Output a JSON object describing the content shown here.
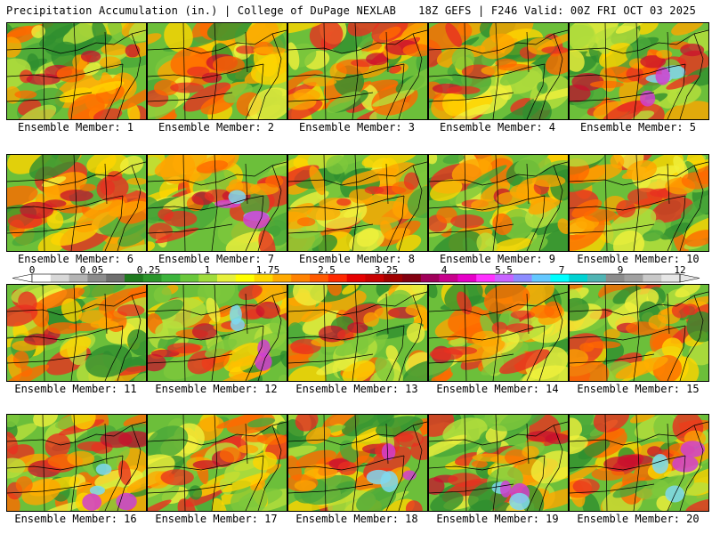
{
  "header": {
    "title": "Precipitation Accumulation (in.) | College of DuPage NEXLAB",
    "run_info": "18Z GEFS | F246 Valid: 00Z FRI OCT 03 2025"
  },
  "colorbar": {
    "labels": [
      "0",
      "0.05",
      "0.25",
      "1",
      "1.75",
      "2.5",
      "3.25",
      "4",
      "5.5",
      "7",
      "9",
      "12"
    ],
    "colors": [
      "#ffffff",
      "#d8d8d8",
      "#b4b4b4",
      "#8c8c8c",
      "#6e6e6e",
      "#1e7a1e",
      "#2b962b",
      "#3cb43c",
      "#6ac83c",
      "#a0dc3c",
      "#e6f03c",
      "#ffff00",
      "#ffd700",
      "#ffaa00",
      "#ff8200",
      "#ff5a00",
      "#ff2800",
      "#e60000",
      "#c80000",
      "#a00000",
      "#820010",
      "#a0005a",
      "#c8008c",
      "#e600c8",
      "#ff32ff",
      "#c864ff",
      "#8c8cff",
      "#64c8ff",
      "#00ffff",
      "#00d2d2",
      "#50b4b4",
      "#8c8c8c",
      "#a0a0a0",
      "#c8c8c8",
      "#e6e6e6"
    ]
  },
  "members": [
    {
      "label": "Ensemble Member: 1"
    },
    {
      "label": "Ensemble Member: 2"
    },
    {
      "label": "Ensemble Member: 3"
    },
    {
      "label": "Ensemble Member: 4"
    },
    {
      "label": "Ensemble Member: 5"
    },
    {
      "label": "Ensemble Member: 6"
    },
    {
      "label": "Ensemble Member: 7"
    },
    {
      "label": "Ensemble Member: 8"
    },
    {
      "label": "Ensemble Member: 9"
    },
    {
      "label": "Ensemble Member: 10"
    },
    {
      "label": "Ensemble Member: 11"
    },
    {
      "label": "Ensemble Member: 12"
    },
    {
      "label": "Ensemble Member: 13"
    },
    {
      "label": "Ensemble Member: 14"
    },
    {
      "label": "Ensemble Member: 15"
    },
    {
      "label": "Ensemble Member: 16"
    },
    {
      "label": "Ensemble Member: 17"
    },
    {
      "label": "Ensemble Member: 18"
    },
    {
      "label": "Ensemble Member: 19"
    },
    {
      "label": "Ensemble Member: 20"
    }
  ]
}
